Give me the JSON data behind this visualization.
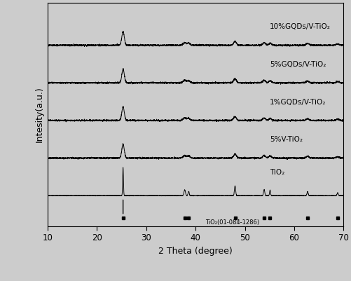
{
  "xlabel": "2 Theta (degree)",
  "ylabel": "Intesity(a.u.)",
  "xlim": [
    10,
    70
  ],
  "x_ticks": [
    10,
    20,
    30,
    40,
    50,
    60,
    70
  ],
  "background_color": "#e8e8e8",
  "plot_bg_color": "#d8d8d8",
  "series_labels": [
    "TiO₂",
    "5%V-TiO₂",
    "1%GQDs/V-TiO₂",
    "5%GQDs/V-TiO₂",
    "10%GQDs/V-TiO₂"
  ],
  "series_offsets": [
    0.06,
    0.22,
    0.38,
    0.54,
    0.7
  ],
  "reference_label": "TiO₂(01-084-1286)",
  "ref_marker_positions": [
    25.3,
    37.8,
    38.6,
    48.1,
    53.9,
    55.1,
    62.7,
    68.8
  ],
  "ref_line_x": 25.3,
  "noise_seed": 42,
  "line_color": "#000000",
  "label_fontsize": 7.5
}
